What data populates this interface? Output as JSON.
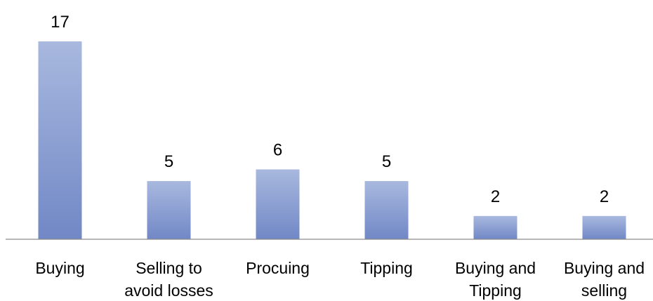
{
  "chart_data": {
    "type": "bar",
    "categories": [
      [
        "Buying"
      ],
      [
        "Selling to",
        "avoid losses"
      ],
      [
        "Procuing"
      ],
      [
        "Tipping"
      ],
      [
        "Buying and",
        "Tipping"
      ],
      [
        "Buying and",
        "selling"
      ]
    ],
    "values": [
      17,
      5,
      6,
      5,
      2,
      2
    ],
    "title": "",
    "xlabel": "",
    "ylabel": "",
    "ylim": [
      0,
      17
    ],
    "grid": false,
    "legend": "none",
    "colors": {
      "bar_top": "#a8b8de",
      "bar_bottom": "#7188c6",
      "axis": "#8c8c8c"
    }
  }
}
